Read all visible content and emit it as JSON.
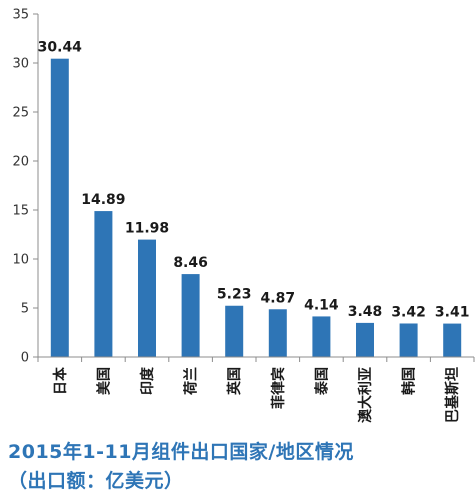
{
  "chart_data": {
    "type": "bar",
    "categories": [
      "日本",
      "美国",
      "印度",
      "荷兰",
      "英国",
      "菲律宾",
      "泰国",
      "澳大利亚",
      "韩国",
      "巴基斯坦"
    ],
    "values": [
      30.44,
      14.89,
      11.98,
      8.46,
      5.23,
      4.87,
      4.14,
      3.48,
      3.42,
      3.41
    ],
    "value_labels": [
      "30.44",
      "14.89",
      "11.98",
      "8.46",
      "5.23",
      "4.87",
      "4.14",
      "3.48",
      "3.42",
      "3.41"
    ],
    "yticks": [
      0,
      5,
      10,
      15,
      20,
      25,
      30,
      35
    ],
    "ylim": [
      0,
      35
    ],
    "grid": false,
    "legend": "none",
    "bar_color": "#2e75b6",
    "title": "2015年1-11月组件出口国家/地区情况",
    "subtitle": "（出口额：亿美元）",
    "caption_color": "#2e75b6"
  }
}
